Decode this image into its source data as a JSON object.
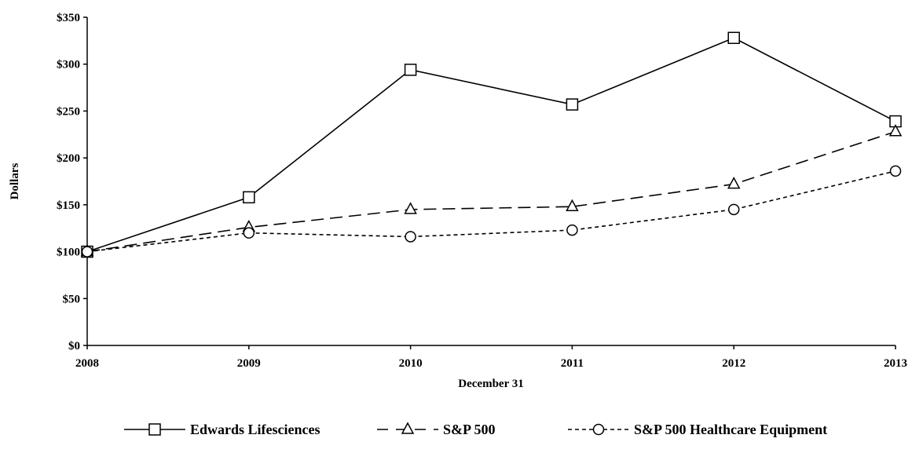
{
  "chart_data": {
    "type": "line",
    "title": "",
    "xlabel": "December 31",
    "ylabel": "Dollars",
    "x": [
      "2008",
      "2009",
      "2010",
      "2011",
      "2012",
      "2013"
    ],
    "ylim": [
      0,
      350
    ],
    "y_ticks": [
      "$0",
      "$50",
      "$100",
      "$150",
      "$200",
      "$250",
      "$300",
      "$350"
    ],
    "grid": false,
    "legend": "bottom",
    "series": [
      {
        "name": "Edwards Lifesciences",
        "values": [
          100,
          158,
          294,
          257,
          328,
          239
        ],
        "line_style": "solid",
        "marker": "square",
        "color": "#000000"
      },
      {
        "name": "S&P 500",
        "values": [
          100,
          126,
          145,
          148,
          172,
          228
        ],
        "line_style": "long-dash",
        "marker": "triangle",
        "color": "#000000"
      },
      {
        "name": "S&P 500 Healthcare Equipment",
        "values": [
          100,
          120,
          116,
          123,
          145,
          186
        ],
        "line_style": "short-dash",
        "marker": "circle",
        "color": "#000000"
      }
    ]
  }
}
